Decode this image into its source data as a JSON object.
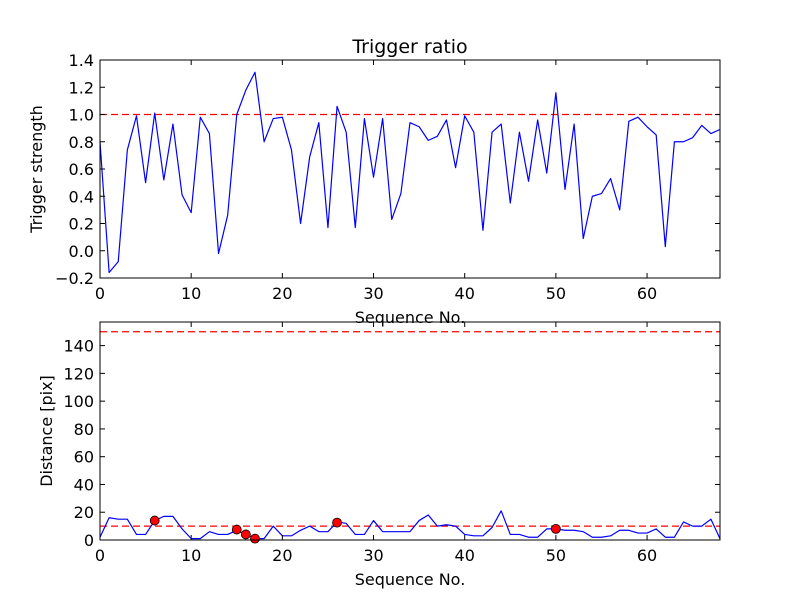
{
  "chart_data": [
    {
      "type": "line",
      "title": "Trigger ratio",
      "xlabel": "Sequence No.",
      "ylabel": "Trigger strength",
      "xlim": [
        0,
        68
      ],
      "ylim": [
        -0.2,
        1.4
      ],
      "xticks": [
        0,
        10,
        20,
        30,
        40,
        50,
        60
      ],
      "yticks": [
        -0.2,
        0.0,
        0.2,
        0.4,
        0.6,
        0.8,
        1.0,
        1.2,
        1.4
      ],
      "ytick_labels": [
        "−0.2",
        "0.0",
        "0.2",
        "0.4",
        "0.6",
        "0.8",
        "1.0",
        "1.2",
        "1.4"
      ],
      "xtick_labels": [
        "0",
        "10",
        "20",
        "30",
        "40",
        "50",
        "60"
      ],
      "series": [
        {
          "color": "#0000ff",
          "x": [
            0,
            1,
            2,
            3,
            4,
            5,
            6,
            7,
            8,
            9,
            10,
            11,
            12,
            13,
            14,
            15,
            16,
            17,
            18,
            19,
            20,
            21,
            22,
            23,
            24,
            25,
            26,
            27,
            28,
            29,
            30,
            31,
            32,
            33,
            34,
            35,
            36,
            37,
            38,
            39,
            40,
            41,
            42,
            43,
            44,
            45,
            46,
            47,
            48,
            49,
            50,
            51,
            52,
            53,
            54,
            55,
            56,
            57,
            58,
            59,
            60,
            61,
            62,
            63,
            64,
            65,
            66,
            67,
            68
          ],
          "values": [
            0.8,
            -0.16,
            -0.08,
            0.74,
            0.99,
            0.5,
            1.01,
            0.52,
            0.93,
            0.41,
            0.28,
            0.98,
            0.86,
            -0.02,
            0.26,
            1.0,
            1.18,
            1.31,
            0.8,
            0.97,
            0.98,
            0.74,
            0.2,
            0.69,
            0.94,
            0.17,
            1.06,
            0.87,
            0.17,
            0.97,
            0.54,
            0.97,
            0.23,
            0.42,
            0.94,
            0.91,
            0.81,
            0.84,
            0.96,
            0.61,
            0.99,
            0.87,
            0.15,
            0.87,
            0.93,
            0.35,
            0.87,
            0.51,
            0.96,
            0.57,
            1.16,
            0.45,
            0.93,
            0.09,
            0.4,
            0.42,
            0.53,
            0.3,
            0.95,
            0.98,
            0.91,
            0.85,
            0.03,
            0.8,
            0.8,
            0.83,
            0.92,
            0.86,
            0.89
          ]
        }
      ],
      "reference_lines": [
        {
          "y": 1.0,
          "color": "#ff0000",
          "style": "dashed"
        }
      ],
      "grid": false
    },
    {
      "type": "line",
      "title": "",
      "xlabel": "Sequence No.",
      "ylabel": "Distance [pix]",
      "xlim": [
        0,
        68
      ],
      "ylim": [
        0,
        157
      ],
      "xticks": [
        0,
        10,
        20,
        30,
        40,
        50,
        60
      ],
      "yticks": [
        0,
        20,
        40,
        60,
        80,
        100,
        120,
        140
      ],
      "ytick_labels": [
        "0",
        "20",
        "40",
        "60",
        "80",
        "100",
        "120",
        "140"
      ],
      "xtick_labels": [
        "0",
        "10",
        "20",
        "30",
        "40",
        "50",
        "60"
      ],
      "series": [
        {
          "color": "#0000ff",
          "x": [
            0,
            1,
            2,
            3,
            4,
            5,
            6,
            7,
            8,
            9,
            10,
            11,
            12,
            13,
            14,
            15,
            16,
            17,
            18,
            19,
            20,
            21,
            22,
            23,
            24,
            25,
            26,
            27,
            28,
            29,
            30,
            31,
            32,
            33,
            34,
            35,
            36,
            37,
            38,
            39,
            40,
            41,
            42,
            43,
            44,
            45,
            46,
            47,
            48,
            49,
            50,
            51,
            52,
            53,
            54,
            55,
            56,
            57,
            58,
            59,
            60,
            61,
            62,
            63,
            64,
            65,
            66,
            67,
            68
          ],
          "values": [
            2,
            16,
            15,
            15,
            4,
            4,
            14,
            17,
            17,
            8,
            1,
            1,
            6,
            4,
            4,
            7,
            4,
            1,
            1,
            10,
            3,
            3,
            7,
            10,
            6,
            6,
            13,
            12,
            4,
            4,
            14,
            6,
            6,
            6,
            6,
            14,
            18,
            10,
            11,
            10,
            4,
            3,
            3,
            9,
            21,
            4,
            4,
            2,
            2,
            8,
            8,
            7,
            7,
            6,
            2,
            2,
            3,
            7,
            7,
            5,
            5,
            8,
            2,
            2,
            13,
            10,
            10,
            15,
            1
          ],
          "markers": [
            {
              "x": 6,
              "y": 14
            },
            {
              "x": 15,
              "y": 7.5
            },
            {
              "x": 16,
              "y": 4
            },
            {
              "x": 17,
              "y": 1
            },
            {
              "x": 26,
              "y": 12.5
            },
            {
              "x": 50,
              "y": 8
            }
          ],
          "marker_color": "#ff0000"
        }
      ],
      "reference_lines": [
        {
          "y": 10,
          "color": "#ff0000",
          "style": "dashed"
        },
        {
          "y": 150,
          "color": "#ff0000",
          "style": "dashed"
        }
      ],
      "grid": false
    }
  ]
}
